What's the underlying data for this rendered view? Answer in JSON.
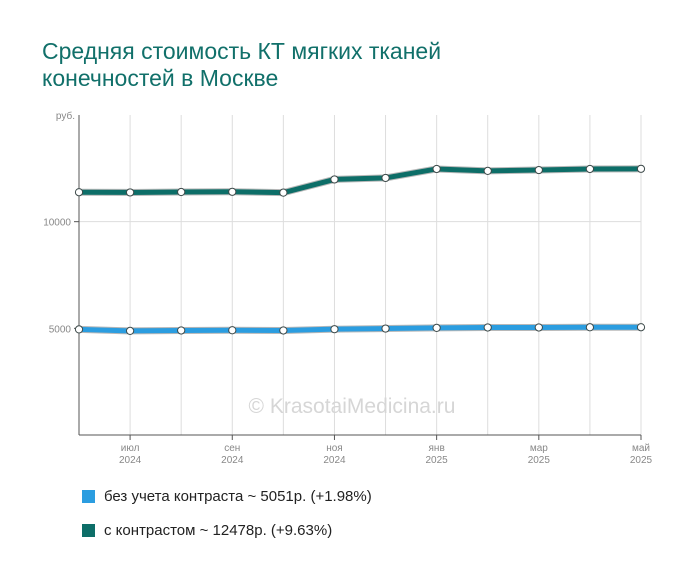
{
  "title": {
    "line1": "Средняя стоимость КТ мягких тканей",
    "line2": "конечностей в Москве"
  },
  "watermark": "© KrasotaiMedicina.ru",
  "chart_data": {
    "type": "line",
    "y_unit_label": "руб.",
    "ylim": [
      0,
      15000
    ],
    "y_ticks": [
      {
        "value": 5000,
        "label": "5000"
      },
      {
        "value": 10000,
        "label": "10000"
      }
    ],
    "x_ticks": [
      {
        "index": 1,
        "month": "июл",
        "year": "2024"
      },
      {
        "index": 3,
        "month": "сен",
        "year": "2024"
      },
      {
        "index": 5,
        "month": "ноя",
        "year": "2024"
      },
      {
        "index": 7,
        "month": "янв",
        "year": "2025"
      },
      {
        "index": 9,
        "month": "мар",
        "year": "2025"
      },
      {
        "index": 11,
        "month": "май",
        "year": "2025"
      }
    ],
    "x": [
      "2024-06",
      "2024-07",
      "2024-08",
      "2024-09",
      "2024-10",
      "2024-11",
      "2024-12",
      "2025-01",
      "2025-02",
      "2025-03",
      "2025-04",
      "2025-05"
    ],
    "grid": true,
    "series": [
      {
        "name": "без учета контраста",
        "color": "#2b9de0",
        "values": [
          4950,
          4880,
          4900,
          4910,
          4900,
          4960,
          4990,
          5020,
          5040,
          5040,
          5050,
          5051
        ]
      },
      {
        "name": "с контрастом",
        "color": "#0d6e68",
        "values": [
          11380,
          11370,
          11390,
          11400,
          11360,
          11980,
          12050,
          12470,
          12380,
          12420,
          12470,
          12478
        ]
      }
    ]
  },
  "legend": [
    {
      "label": "без учета контраста ~ 5051р. (+1.98%)",
      "color": "#2b9de0"
    },
    {
      "label": "с контрастом ~ 12478р. (+9.63%)",
      "color": "#0d6e68"
    }
  ]
}
